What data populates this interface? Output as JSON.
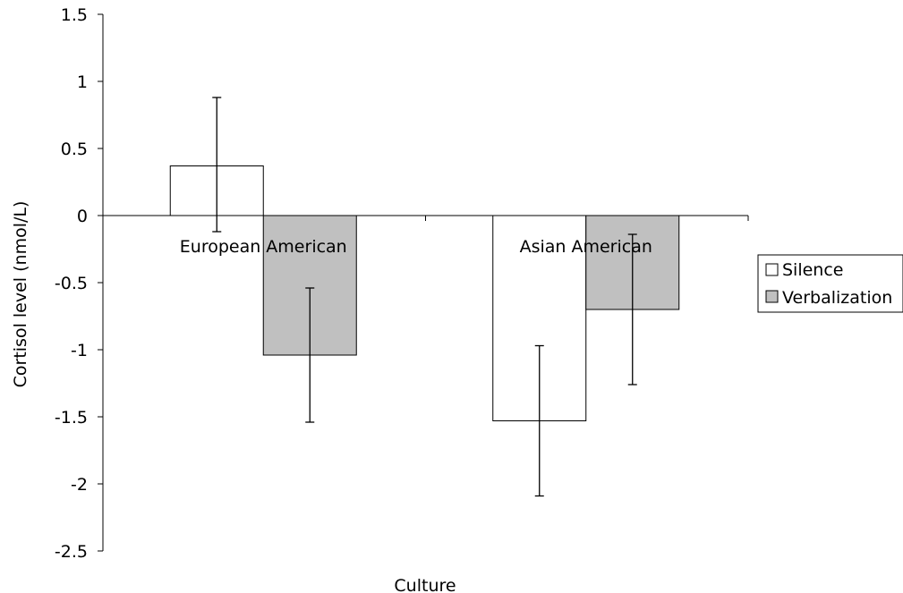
{
  "chart_data": {
    "type": "bar",
    "title": "",
    "xlabel": "Culture",
    "ylabel": "Cortisol level (nmol/L)",
    "ylim": [
      -2.5,
      1.5
    ],
    "yticks": [
      "1.5",
      "1",
      "0.5",
      "0",
      "-0.5",
      "-1",
      "-1.5",
      "-2",
      "-2.5"
    ],
    "grid": false,
    "legend_position": "right",
    "categories": [
      "European American",
      "Asian American"
    ],
    "series": [
      {
        "name": "Silence",
        "color": "#ffffff",
        "values": [
          0.37,
          -1.53
        ],
        "error_low": [
          -0.12,
          -2.09
        ],
        "error_high": [
          0.88,
          -0.97
        ]
      },
      {
        "name": "Verbalization",
        "color": "#c0c0c0",
        "values": [
          -1.04,
          -0.7
        ],
        "error_low": [
          -1.54,
          -1.26
        ],
        "error_high": [
          -0.54,
          -0.14
        ]
      }
    ]
  }
}
